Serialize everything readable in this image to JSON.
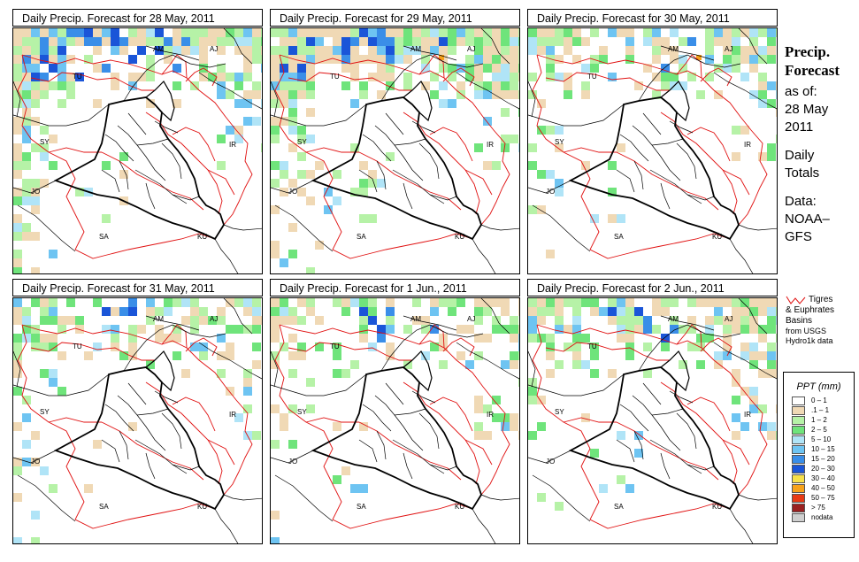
{
  "panels": [
    {
      "title": "Daily Precip. Forecast for  28 May, 2011",
      "seed": 11,
      "intensity": 1.0,
      "northBias": 0.9,
      "westBias": 0.85
    },
    {
      "title": "Daily Precip. Forecast for  29 May, 2011",
      "seed": 23,
      "intensity": 1.2,
      "northBias": 0.95,
      "westBias": 0.55
    },
    {
      "title": "Daily Precip. Forecast for  30 May, 2011",
      "seed": 37,
      "intensity": 0.8,
      "northBias": 0.85,
      "westBias": 0.2
    },
    {
      "title": "Daily Precip. Forecast for  31 May, 2011",
      "seed": 41,
      "intensity": 0.75,
      "northBias": 0.7,
      "westBias": 0.45
    },
    {
      "title": "Daily Precip. Forecast for  1 Jun., 2011",
      "seed": 53,
      "intensity": 0.7,
      "northBias": 0.7,
      "westBias": 0.25
    },
    {
      "title": "Daily Precip. Forecast for  2 Jun., 2011",
      "seed": 67,
      "intensity": 1.0,
      "northBias": 0.8,
      "westBias": 0.1
    }
  ],
  "countryLabels": [
    {
      "text": "AM",
      "x": 158,
      "y": 26
    },
    {
      "text": "AJ",
      "x": 222,
      "y": 26
    },
    {
      "text": "TU",
      "x": 67,
      "y": 57
    },
    {
      "text": "SY",
      "x": 30,
      "y": 131
    },
    {
      "text": "IR",
      "x": 244,
      "y": 134
    },
    {
      "text": "JO",
      "x": 20,
      "y": 187
    },
    {
      "text": "SA",
      "x": 97,
      "y": 238
    },
    {
      "text": "KU",
      "x": 208,
      "y": 238
    }
  ],
  "side": {
    "title1": "Precip.",
    "title2": "Forecast",
    "asof": "as of:",
    "date1": "28 May",
    "date2": "2011",
    "totals1": "Daily",
    "totals2": "Totals",
    "data1": "Data:",
    "data2": "NOAA–",
    "data3": "GFS"
  },
  "basin": {
    "l1": "Tigres",
    "l2": "& Euphrates",
    "l3": "Basins",
    "l4": "from USGS",
    "l5": "Hydro1k data"
  },
  "legend": {
    "title": "PPT (mm)",
    "items": [
      {
        "label": "0 – 1",
        "color": "#ffffff"
      },
      {
        "label": ".1 – 1",
        "color": "#f0d9b5"
      },
      {
        "label": "1 – 2",
        "color": "#b6f2a7"
      },
      {
        "label": "2 – 5",
        "color": "#6fe47b"
      },
      {
        "label": "5 – 10",
        "color": "#b0e4f7"
      },
      {
        "label": "10 – 15",
        "color": "#6ec4f2"
      },
      {
        "label": "15 – 20",
        "color": "#3a8ee8"
      },
      {
        "label": "20 – 30",
        "color": "#1a55d8"
      },
      {
        "label": "30 – 40",
        "color": "#f7e04a"
      },
      {
        "label": "40 – 50",
        "color": "#f7a21a"
      },
      {
        "label": "50 – 75",
        "color": "#e83a14"
      },
      {
        "label": "> 75",
        "color": "#9a2020"
      },
      {
        "label": "nodata",
        "color": "#cfcfcf"
      }
    ]
  }
}
